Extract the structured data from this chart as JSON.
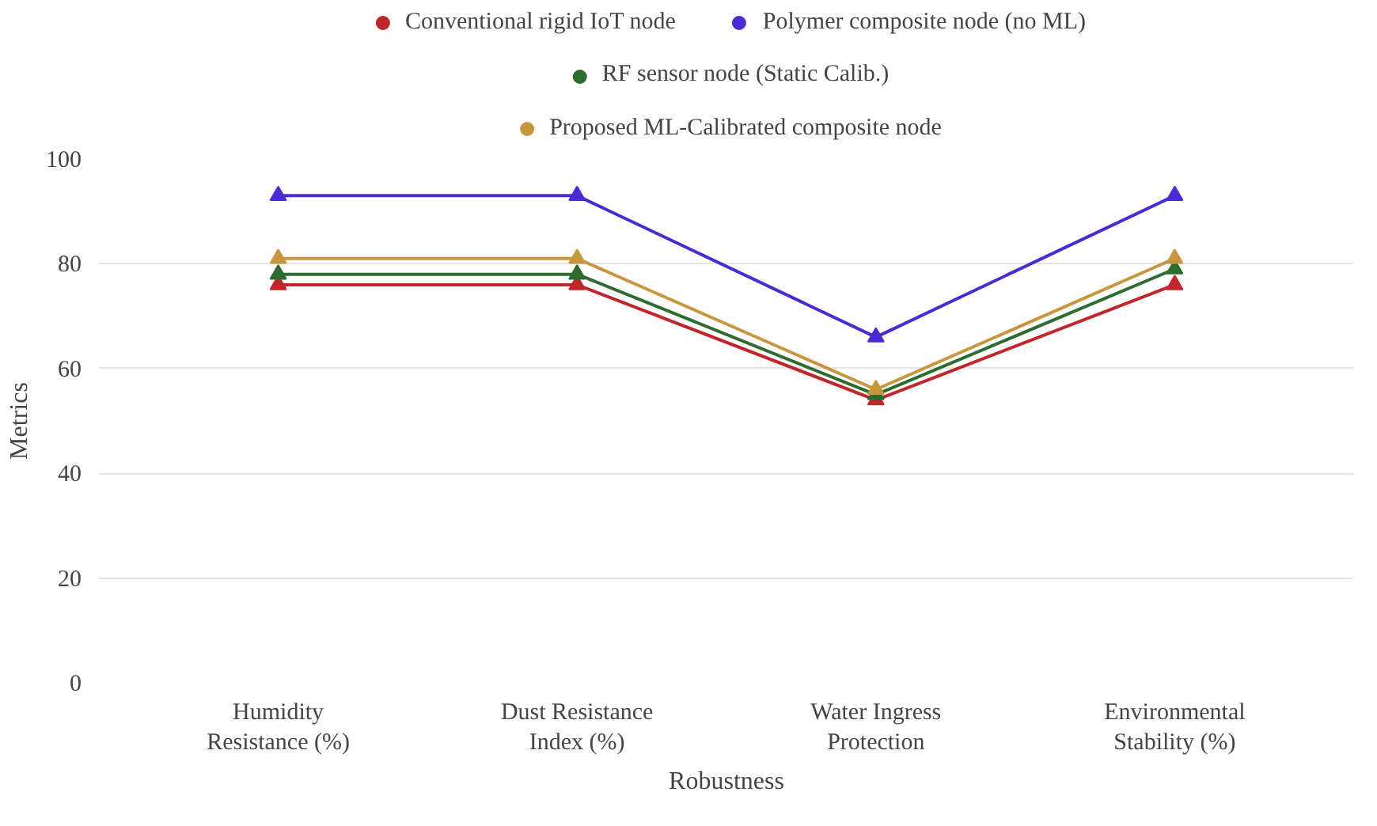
{
  "chart_data": {
    "type": "line",
    "xlabel": "Robustness",
    "ylabel": "Metrics",
    "categories": [
      "Humidity\nResistance (%)",
      "Dust Resistance\nIndex (%)",
      "Water Ingress\nProtection",
      "Environmental\nStability (%)"
    ],
    "series": [
      {
        "name": "Conventional rigid IoT node",
        "color": "#c0262b",
        "values": [
          76,
          76,
          54,
          76
        ]
      },
      {
        "name": "Polymer composite node (no ML)",
        "color": "#4b2bd1",
        "values": [
          93,
          93,
          66,
          93
        ]
      },
      {
        "name": "RF sensor node (Static Calib.)",
        "color": "#2e6b2e",
        "values": [
          78,
          78,
          55,
          79
        ]
      },
      {
        "name": "Proposed ML-Calibrated composite node",
        "color": "#c8963e",
        "values": [
          81,
          81,
          56,
          81
        ]
      }
    ],
    "ylim": [
      0,
      100
    ],
    "yticks": [
      0,
      20,
      40,
      60,
      80,
      100
    ],
    "grid": "y",
    "legend": "top",
    "marker": "triangle",
    "line_style": "solid"
  }
}
